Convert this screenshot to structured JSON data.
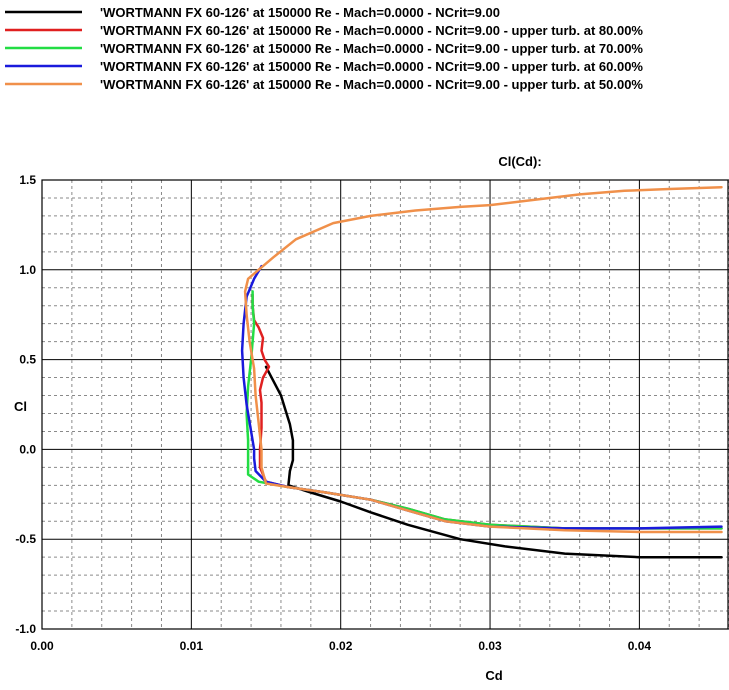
{
  "chart_data": {
    "type": "line",
    "title": "Cl(Cd):",
    "xlabel": "Cd",
    "ylabel": "Cl",
    "xlim": [
      0.0,
      0.046
    ],
    "ylim": [
      -1.0,
      1.5
    ],
    "x_ticks": [
      "0.00",
      "0.01",
      "0.02",
      "0.03",
      "0.04"
    ],
    "x_tick_values": [
      0.0,
      0.01,
      0.02,
      0.03,
      0.04
    ],
    "y_ticks": [
      "-1.0",
      "-0.5",
      "0.0",
      "0.5",
      "1.0",
      "1.5"
    ],
    "y_tick_values": [
      -1.0,
      -0.5,
      0.0,
      0.5,
      1.0,
      1.5
    ],
    "grid": true,
    "legend_position": "top-left, above plot",
    "series": [
      {
        "name": "'WORTMANN FX 60-126' at 150000 Re - Mach=0.0000 - NCrit=9.00",
        "color": "#000000",
        "points": [
          [
            0.0455,
            -0.6
          ],
          [
            0.04,
            -0.6
          ],
          [
            0.035,
            -0.58
          ],
          [
            0.031,
            -0.54
          ],
          [
            0.028,
            -0.5
          ],
          [
            0.0245,
            -0.42
          ],
          [
            0.022,
            -0.35
          ],
          [
            0.02,
            -0.29
          ],
          [
            0.018,
            -0.24
          ],
          [
            0.0165,
            -0.2
          ],
          [
            0.0166,
            -0.12
          ],
          [
            0.0168,
            -0.06
          ],
          [
            0.0168,
            0.05
          ],
          [
            0.0166,
            0.14
          ],
          [
            0.0163,
            0.22
          ],
          [
            0.016,
            0.3
          ],
          [
            0.0155,
            0.38
          ],
          [
            0.015,
            0.46
          ]
        ]
      },
      {
        "name": "'WORTMANN FX 60-126' at 150000 Re - Mach=0.0000 - NCrit=9.00 - upper turb. at 80.00%",
        "color": "#e02020",
        "points": [
          [
            0.0455,
            -0.44
          ],
          [
            0.04,
            -0.44
          ],
          [
            0.035,
            -0.44
          ],
          [
            0.03,
            -0.42
          ],
          [
            0.027,
            -0.39
          ],
          [
            0.0245,
            -0.33
          ],
          [
            0.022,
            -0.28
          ],
          [
            0.019,
            -0.24
          ],
          [
            0.0165,
            -0.21
          ],
          [
            0.015,
            -0.18
          ],
          [
            0.0146,
            -0.1
          ],
          [
            0.0146,
            0.0
          ],
          [
            0.0147,
            0.12
          ],
          [
            0.0147,
            0.26
          ],
          [
            0.0146,
            0.33
          ],
          [
            0.0148,
            0.4
          ],
          [
            0.0152,
            0.46
          ],
          [
            0.0149,
            0.5
          ],
          [
            0.0147,
            0.55
          ],
          [
            0.0148,
            0.62
          ],
          [
            0.0145,
            0.68
          ],
          [
            0.0142,
            0.72
          ],
          [
            0.0141,
            0.8
          ],
          [
            0.0141,
            0.86
          ]
        ]
      },
      {
        "name": "'WORTMANN FX 60-126' at 150000 Re - Mach=0.0000 - NCrit=9.00 - upper turb. at 70.00%",
        "color": "#22dd44",
        "points": [
          [
            0.0455,
            -0.44
          ],
          [
            0.04,
            -0.44
          ],
          [
            0.035,
            -0.44
          ],
          [
            0.03,
            -0.42
          ],
          [
            0.027,
            -0.39
          ],
          [
            0.0245,
            -0.33
          ],
          [
            0.022,
            -0.28
          ],
          [
            0.019,
            -0.24
          ],
          [
            0.0165,
            -0.21
          ],
          [
            0.0145,
            -0.18
          ],
          [
            0.0138,
            -0.14
          ],
          [
            0.0138,
            -0.05
          ],
          [
            0.0138,
            0.05
          ],
          [
            0.0137,
            0.2
          ],
          [
            0.0138,
            0.35
          ],
          [
            0.014,
            0.5
          ],
          [
            0.0141,
            0.6
          ],
          [
            0.0142,
            0.7
          ],
          [
            0.0141,
            0.8
          ],
          [
            0.0141,
            0.88
          ]
        ]
      },
      {
        "name": "'WORTMANN FX 60-126' at 150000 Re - Mach=0.0000 - NCrit=9.00 - upper turb. at 60.00%",
        "color": "#1a1adc",
        "points": [
          [
            0.0455,
            -0.43
          ],
          [
            0.04,
            -0.44
          ],
          [
            0.035,
            -0.44
          ],
          [
            0.03,
            -0.43
          ],
          [
            0.027,
            -0.4
          ],
          [
            0.0245,
            -0.34
          ],
          [
            0.022,
            -0.28
          ],
          [
            0.019,
            -0.24
          ],
          [
            0.0165,
            -0.21
          ],
          [
            0.015,
            -0.18
          ],
          [
            0.0143,
            -0.12
          ],
          [
            0.0142,
            -0.05
          ],
          [
            0.0142,
            0.0
          ],
          [
            0.014,
            0.1
          ],
          [
            0.0137,
            0.25
          ],
          [
            0.0135,
            0.4
          ],
          [
            0.0134,
            0.55
          ],
          [
            0.0135,
            0.7
          ],
          [
            0.0137,
            0.85
          ],
          [
            0.0142,
            0.95
          ],
          [
            0.0147,
            1.02
          ]
        ]
      },
      {
        "name": "'WORTMANN FX 60-126' at 150000 Re - Mach=0.0000 - NCrit=9.00 - upper turb. at 50.00%",
        "color": "#f0904a",
        "points": [
          [
            0.0455,
            -0.46
          ],
          [
            0.04,
            -0.46
          ],
          [
            0.035,
            -0.45
          ],
          [
            0.03,
            -0.43
          ],
          [
            0.027,
            -0.4
          ],
          [
            0.0245,
            -0.34
          ],
          [
            0.022,
            -0.28
          ],
          [
            0.019,
            -0.24
          ],
          [
            0.0165,
            -0.21
          ],
          [
            0.015,
            -0.19
          ],
          [
            0.0147,
            -0.1
          ],
          [
            0.0147,
            0.0
          ],
          [
            0.0145,
            0.15
          ],
          [
            0.0143,
            0.3
          ],
          [
            0.0142,
            0.45
          ],
          [
            0.0139,
            0.6
          ],
          [
            0.0137,
            0.75
          ],
          [
            0.0136,
            0.88
          ],
          [
            0.0138,
            0.95
          ],
          [
            0.0145,
            1.0
          ],
          [
            0.0155,
            1.07
          ],
          [
            0.017,
            1.17
          ],
          [
            0.0195,
            1.26
          ],
          [
            0.022,
            1.3
          ],
          [
            0.025,
            1.33
          ],
          [
            0.028,
            1.35
          ],
          [
            0.03,
            1.36
          ],
          [
            0.033,
            1.39
          ],
          [
            0.036,
            1.42
          ],
          [
            0.039,
            1.44
          ],
          [
            0.042,
            1.45
          ],
          [
            0.0455,
            1.46
          ]
        ]
      }
    ]
  }
}
